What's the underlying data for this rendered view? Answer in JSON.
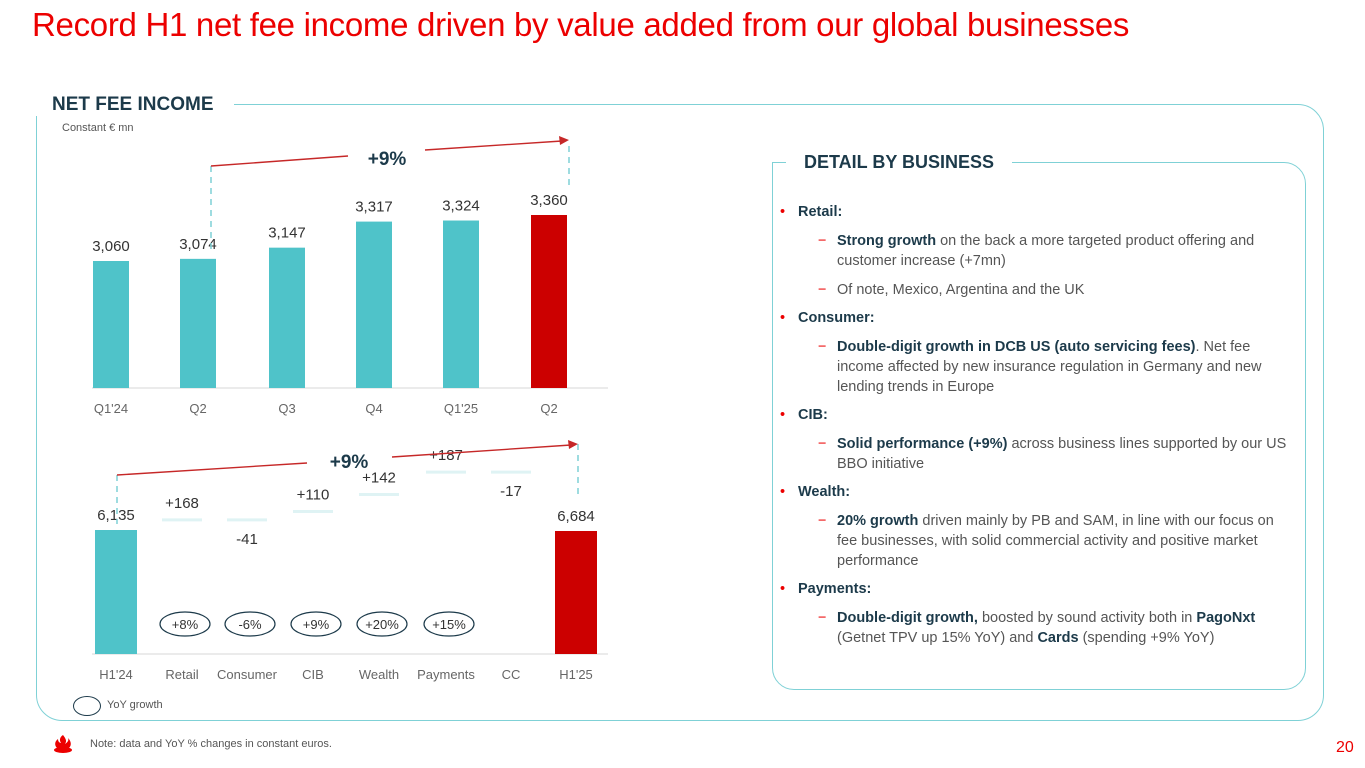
{
  "title": "Record H1 net fee income driven by value added from our global businesses",
  "panel": {
    "heading": "NET FEE INCOME",
    "subheading": "Constant € mn"
  },
  "colors": {
    "accent_red": "#ec0000",
    "dark_red": "#cc0000",
    "teal": "#4fc3c9",
    "navy": "#1c3a4a"
  },
  "chart_data": [
    {
      "type": "bar",
      "categories": [
        "Q1'24",
        "Q2",
        "Q3",
        "Q4",
        "Q1'25",
        "Q2"
      ],
      "values": [
        3060,
        3074,
        3147,
        3317,
        3324,
        3360
      ],
      "value_labels": [
        "3,060",
        "3,074",
        "3,147",
        "3,317",
        "3,324",
        "3,360"
      ],
      "growth_label": "+9%",
      "highlight_last": true
    },
    {
      "type": "bar",
      "subtype": "waterfall",
      "categories": [
        "H1'24",
        "Retail",
        "Consumer",
        "CIB",
        "Wealth",
        "Payments",
        "CC",
        "H1'25"
      ],
      "values": [
        6135,
        168,
        -41,
        110,
        142,
        187,
        -17,
        6684
      ],
      "value_labels": [
        "6,135",
        "+168",
        "-41",
        "+110",
        "+142",
        "+187",
        "-17",
        "6,684"
      ],
      "yoy_growth": [
        "",
        "+8%",
        "-6%",
        "+9%",
        "+20%",
        "+15%",
        "",
        ""
      ],
      "growth_label": "+9%",
      "legend": "YoY growth"
    }
  ],
  "detail": {
    "heading": "DETAIL BY BUSINESS",
    "items": [
      {
        "name": "Retail:",
        "subs": [
          {
            "bold": "Strong growth",
            "rest": " on the back a more targeted product offering and customer increase (+7mn)"
          },
          {
            "bold": "",
            "rest": "Of note, Mexico, Argentina and the UK"
          }
        ]
      },
      {
        "name": "Consumer:",
        "subs": [
          {
            "bold": "Double-digit growth in DCB US (auto servicing fees)",
            "rest": ". Net fee income affected by new insurance regulation in Germany and new lending trends in Europe"
          }
        ]
      },
      {
        "name": "CIB:",
        "subs": [
          {
            "bold": "Solid performance (+9%)",
            "rest": " across business lines supported by our US BBO initiative"
          }
        ]
      },
      {
        "name": "Wealth:",
        "subs": [
          {
            "bold": "20% growth",
            "rest": " driven mainly by PB and SAM, in line with our focus on fee businesses, with solid commercial activity and positive market performance"
          }
        ]
      },
      {
        "name": "Payments:",
        "subs": [
          {
            "bold": "Double-digit growth,",
            "rest": " boosted by sound activity both in ",
            "bold2": "PagoNxt",
            "rest2": " (Getnet TPV up 15% YoY) and ",
            "bold3": "Cards",
            "rest3": " (spending +9% YoY)"
          }
        ]
      }
    ]
  },
  "footer": {
    "note": "Note: data and YoY % changes in constant euros.",
    "page_number": "20"
  }
}
